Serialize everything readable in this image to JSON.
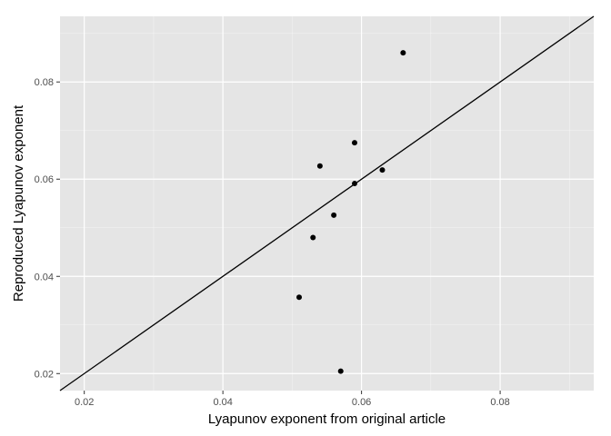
{
  "chart_data": {
    "type": "scatter",
    "xlabel": "Lyapunov exponent from original article",
    "ylabel": "Reproduced Lyapunov exponent",
    "xlim": [
      0.0165,
      0.0935
    ],
    "ylim": [
      0.0165,
      0.0935
    ],
    "x_ticks": [
      0.02,
      0.04,
      0.06,
      0.08
    ],
    "y_ticks": [
      0.02,
      0.04,
      0.06,
      0.08
    ],
    "x_tick_labels": [
      "0.02",
      "0.04",
      "0.06",
      "0.08"
    ],
    "y_tick_labels": [
      "0.02",
      "0.04",
      "0.06",
      "0.08"
    ],
    "points": [
      {
        "x": 0.066,
        "y": 0.086
      },
      {
        "x": 0.059,
        "y": 0.0675
      },
      {
        "x": 0.054,
        "y": 0.0627
      },
      {
        "x": 0.063,
        "y": 0.0619
      },
      {
        "x": 0.059,
        "y": 0.0591
      },
      {
        "x": 0.056,
        "y": 0.0526
      },
      {
        "x": 0.053,
        "y": 0.048
      },
      {
        "x": 0.051,
        "y": 0.0357
      },
      {
        "x": 0.057,
        "y": 0.0205
      }
    ],
    "reference_line": {
      "slope": 1,
      "intercept": 0
    },
    "grid": true,
    "colors": {
      "panel": "#e5e5e5",
      "grid": "#ffffff",
      "points": "#000000",
      "line": "#000000"
    }
  }
}
